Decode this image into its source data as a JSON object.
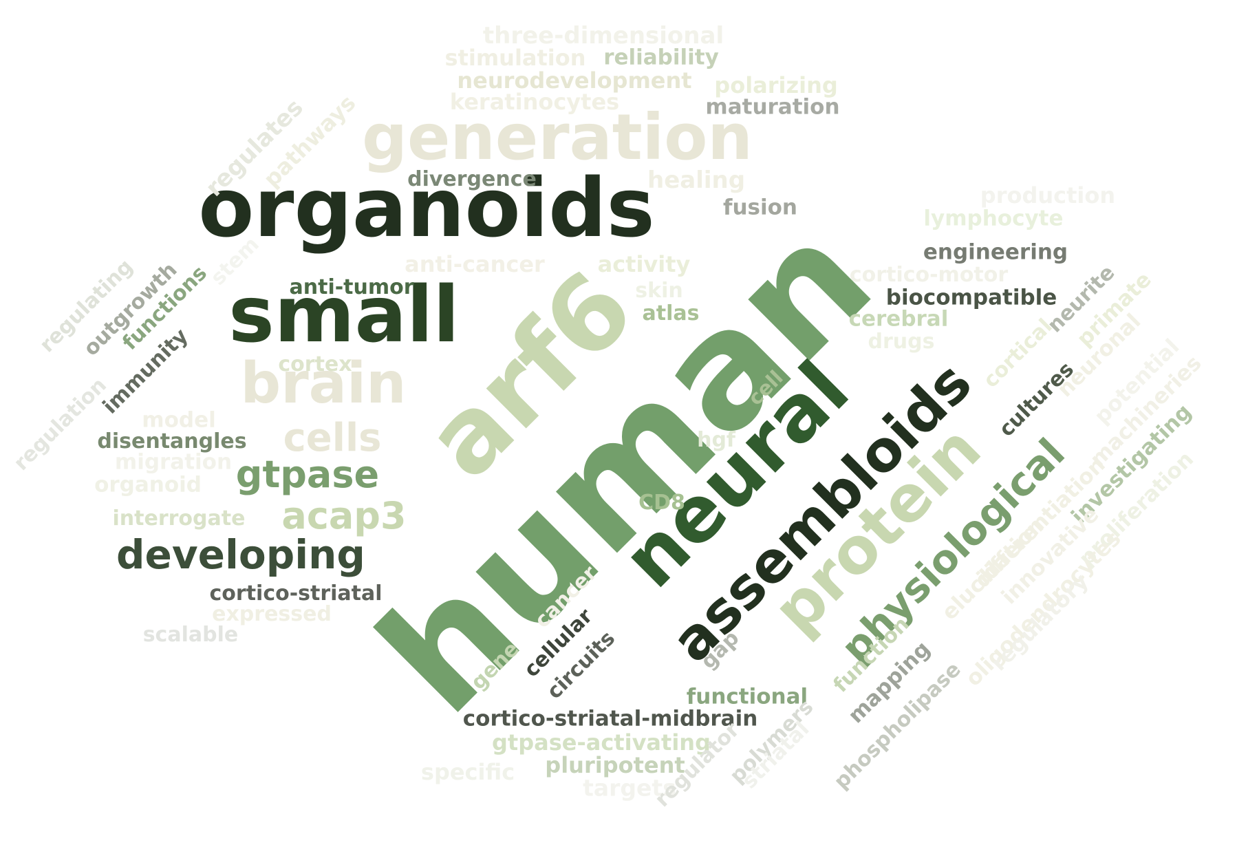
{
  "words": [
    {
      "text": "human",
      "color": "#739f6b"
    },
    {
      "text": "organoids",
      "color": "#22301f"
    },
    {
      "text": "small",
      "color": "#2b4425"
    },
    {
      "text": "generation",
      "color": "#e8e6d6"
    },
    {
      "text": "arf6",
      "color": "#c8d7b0"
    },
    {
      "text": "brain",
      "color": "#e8e6d6"
    },
    {
      "text": "neural",
      "color": "#315b2e"
    },
    {
      "text": "assembloids",
      "color": "#22301f"
    },
    {
      "text": "protein",
      "color": "#c8d7b0"
    },
    {
      "text": "physiological",
      "color": "#7a9e6e"
    },
    {
      "text": "cells",
      "color": "#e8e6d6"
    },
    {
      "text": "gtpase",
      "color": "#7a9e6e"
    },
    {
      "text": "acap3",
      "color": "#c8d7b0"
    },
    {
      "text": "developing",
      "color": "#3c4e39"
    },
    {
      "text": "cortico-striatal",
      "color": "#5e625b"
    },
    {
      "text": "expressed",
      "color": "#f0efe3"
    },
    {
      "text": "scalable",
      "color": "#e2e4e0"
    },
    {
      "text": "three-dimensional",
      "color": "#f2f2ea"
    },
    {
      "text": "stimulation",
      "color": "#f0efe3"
    },
    {
      "text": "reliability",
      "color": "#c5d1b7"
    },
    {
      "text": "neurodevelopment",
      "color": "#e6e6d2"
    },
    {
      "text": "polarizing",
      "color": "#eaeed9"
    },
    {
      "text": "keratinocytes",
      "color": "#f1f0e4"
    },
    {
      "text": "maturation",
      "color": "#a7aaa3"
    },
    {
      "text": "divergence",
      "color": "#7b8876"
    },
    {
      "text": "healing",
      "color": "#f0efe3"
    },
    {
      "text": "fusion",
      "color": "#a3a69e"
    },
    {
      "text": "production",
      "color": "#f3f3ee"
    },
    {
      "text": "lymphocyte",
      "color": "#e8f0dc"
    },
    {
      "text": "engineering",
      "color": "#767b72"
    },
    {
      "text": "anti-cancer",
      "color": "#f2f0e6"
    },
    {
      "text": "activity",
      "color": "#eaeed9"
    },
    {
      "text": "cortico-motor",
      "color": "#f1f1e8"
    },
    {
      "text": "anti-tumor",
      "color": "#4b6a46"
    },
    {
      "text": "skin",
      "color": "#eef1e4"
    },
    {
      "text": "biocompatible",
      "color": "#4a5446"
    },
    {
      "text": "atlas",
      "color": "#a9c195"
    },
    {
      "text": "cerebral",
      "color": "#c7d8b6"
    },
    {
      "text": "drugs",
      "color": "#eef1e3"
    },
    {
      "text": "cortex",
      "color": "#dde4cb"
    },
    {
      "text": "model",
      "color": "#f1f0e6"
    },
    {
      "text": "disentangles",
      "color": "#78896f"
    },
    {
      "text": "migration",
      "color": "#f2f2ea"
    },
    {
      "text": "organoid",
      "color": "#f0f1e6"
    },
    {
      "text": "interrogate",
      "color": "#d9e2c8"
    },
    {
      "text": "hgf",
      "color": "#e3ead7"
    },
    {
      "text": "CD8",
      "color": "#a6c192"
    },
    {
      "text": "functional",
      "color": "#8aa67f"
    },
    {
      "text": "cortico-striatal-midbrain",
      "color": "#50564d"
    },
    {
      "text": "gtpase-activating",
      "color": "#d4e1c4"
    },
    {
      "text": "pluripotent",
      "color": "#c6d3b9"
    },
    {
      "text": "specific",
      "color": "#f0f2ea"
    },
    {
      "text": "targets",
      "color": "#f3f3ee"
    },
    {
      "text": "regulates",
      "color": "#e6e8de"
    },
    {
      "text": "pathways",
      "color": "#eeeee0"
    },
    {
      "text": "regulating",
      "color": "#dfe2d9"
    },
    {
      "text": "outgrowth",
      "color": "#a5aa9f"
    },
    {
      "text": "functions",
      "color": "#8aa67f"
    },
    {
      "text": "stem",
      "color": "#f3f4ef"
    },
    {
      "text": "immunity",
      "color": "#646b60"
    },
    {
      "text": "regulation",
      "color": "#e4e6e0"
    },
    {
      "text": "cell",
      "color": "#a9c195"
    },
    {
      "text": "cancer",
      "color": "#f1f0e6"
    },
    {
      "text": "gene",
      "color": "#c3d5b1"
    },
    {
      "text": "cellular",
      "color": "#3e453b"
    },
    {
      "text": "circuits",
      "color": "#5c6159"
    },
    {
      "text": "gap",
      "color": "#b4b8af"
    },
    {
      "text": "neurite",
      "color": "#b3b8ad"
    },
    {
      "text": "primate",
      "color": "#eaeed9"
    },
    {
      "text": "cortical",
      "color": "#eaeed9"
    },
    {
      "text": "cultures",
      "color": "#4f5a4a"
    },
    {
      "text": "neuronal",
      "color": "#f1f0e4"
    },
    {
      "text": "potential",
      "color": "#f3f3ec"
    },
    {
      "text": "machineries",
      "color": "#f1f0e6"
    },
    {
      "text": "investigating",
      "color": "#b3c6a6"
    },
    {
      "text": "proliferation",
      "color": "#eef1e4"
    },
    {
      "text": "differentiation",
      "color": "#f1f0e4"
    },
    {
      "text": "innovative",
      "color": "#f1f0e6"
    },
    {
      "text": "elucidation",
      "color": "#f1f0e4"
    },
    {
      "text": "oligodendrocytes",
      "color": "#f1f0e4"
    },
    {
      "text": "regulatory",
      "color": "#f1f1ea"
    },
    {
      "text": "function",
      "color": "#c6d6b4"
    },
    {
      "text": "mapping",
      "color": "#9ea39a"
    },
    {
      "text": "phospholipase",
      "color": "#c6cac0"
    },
    {
      "text": "polymers",
      "color": "#d8dbd4"
    },
    {
      "text": "regulator",
      "color": "#e0e2dc"
    },
    {
      "text": "striatal",
      "color": "#f0f1ec"
    }
  ]
}
